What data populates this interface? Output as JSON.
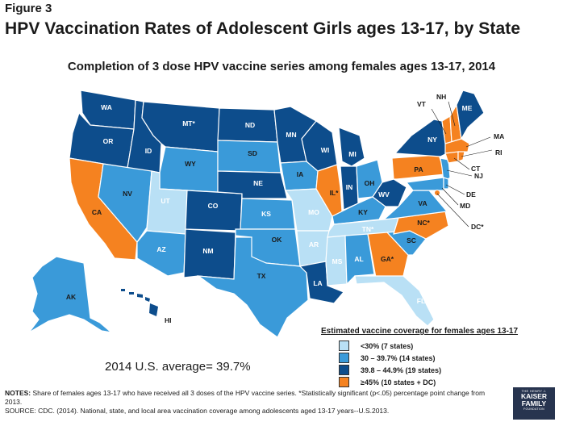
{
  "figure_label": "Figure 3",
  "title": "HPV Vaccination Rates of Adolescent Girls ages 13-17, by State",
  "subtitle": "Completion of 3 dose HPV vaccine series among females ages 13-17, 2014",
  "average_text": "2014 U.S. average=  39.7%",
  "colors": {
    "lt30": "#b9e0f5",
    "c30_39": "#3a9ad9",
    "c39_44": "#0d4d8c",
    "ge45": "#f58220"
  },
  "legend": {
    "title": "Estimated vaccine coverage for females ages 13-17",
    "items": [
      {
        "label": "<30% (7 states)",
        "color": "#b9e0f5"
      },
      {
        "label": "30 – 39.7% (14 states)",
        "color": "#3a9ad9"
      },
      {
        "label": "39.8 – 44.9% (19 states)",
        "color": "#0d4d8c"
      },
      {
        "label": "≥45% (10 states + DC)",
        "color": "#f58220"
      }
    ]
  },
  "states": {
    "WA": "WA",
    "OR": "OR",
    "CA": "CA",
    "ID": "ID",
    "NV": "NV",
    "MT": "MT*",
    "WY": "WY",
    "UT": "UT",
    "AZ": "AZ",
    "CO": "CO",
    "NM": "NM",
    "ND": "ND",
    "SD": "SD",
    "NE": "NE",
    "KS": "KS",
    "OK": "OK",
    "TX": "TX",
    "MN": "MN",
    "IA": "IA",
    "MO": "MO",
    "AR": "AR",
    "LA": "LA",
    "WI": "WI",
    "IL": "IL*",
    "MI": "MI",
    "IN": "IN",
    "OH": "OH",
    "KY": "KY",
    "TN": "TN*",
    "MS": "MS",
    "AL": "AL",
    "GA": "GA*",
    "FL": "FL",
    "SC": "SC",
    "NC": "NC*",
    "VA": "VA",
    "WV": "WV",
    "PA": "PA",
    "NY": "NY",
    "ME": "ME",
    "AK": "AK",
    "HI": "HI",
    "VT": "VT",
    "NH": "NH",
    "MA": "MA",
    "RI": "RI",
    "CT": "CT",
    "NJ": "NJ",
    "DE": "DE",
    "MD": "MD",
    "DC": "DC*"
  },
  "notes": {
    "line1_prefix": "NOTES:",
    "line1": " Share of females ages 13-17 who have received all 3 doses of the HPV vaccine series. *Statistically significant  (p<.05) percentage point change from 2013.",
    "line2": "SOURCE: CDC. (2014). National, state, and local area vaccination coverage among adolescents aged 13-17 years--U.S.2013."
  },
  "logo": {
    "small": "THE HENRY J.",
    "big1": "KAISER",
    "big2": "FAMILY",
    "foundation": "FOUNDATION"
  }
}
